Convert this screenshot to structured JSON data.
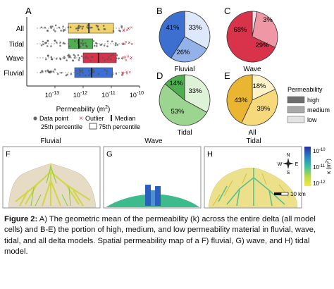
{
  "panel_a": {
    "letter": "A",
    "xlabel_prefix": "Permeability (m",
    "xlabel_exp": "2",
    "xlabel_suffix": ")",
    "ticks": [
      {
        "base": "10",
        "exp": "-13"
      },
      {
        "base": "10",
        "exp": "-12"
      },
      {
        "base": "10",
        "exp": "-11"
      },
      {
        "base": "10",
        "exp": "-10"
      }
    ],
    "legend": {
      "data_point": "Data point",
      "outlier": "Outlier",
      "median": "Median",
      "p25": "25th percentile",
      "p75": "75th percentile"
    }
  },
  "chart_data": [
    {
      "type": "box",
      "log_x": true,
      "xlim": [
        1e-14,
        1e-10
      ],
      "categories": [
        "All",
        "Tidal",
        "Wave",
        "Fluvial"
      ],
      "colors": [
        "#f0d36b",
        "#4faf50",
        "#d8334b",
        "#3a6fd8"
      ],
      "boxes": [
        {
          "category": "All",
          "q1": 3e-13,
          "median": 1.6e-12,
          "q3": 1.2e-11
        },
        {
          "category": "Tidal",
          "q1": 3e-13,
          "median": 7e-13,
          "q3": 2.2e-12
        },
        {
          "category": "Wave",
          "q1": 1e-12,
          "median": 3.5e-12,
          "q3": 1.5e-11
        },
        {
          "category": "Fluvial",
          "q1": 5e-13,
          "median": 2e-12,
          "q3": 1.1e-11
        }
      ]
    },
    {
      "type": "pie",
      "panel": "B",
      "title": "Fluvial",
      "slices": [
        {
          "label": "high",
          "value": 41
        },
        {
          "label": "medium",
          "value": 26
        },
        {
          "label": "low",
          "value": 33
        }
      ],
      "labels": [
        "41%",
        "26%",
        "33%"
      ],
      "colors": [
        "#3c6fd0",
        "#94b2ea",
        "#dde8fb"
      ]
    },
    {
      "type": "pie",
      "panel": "C",
      "title": "Wave",
      "slices": [
        {
          "label": "high",
          "value": 68
        },
        {
          "label": "medium",
          "value": 29
        },
        {
          "label": "low",
          "value": 3
        }
      ],
      "labels": [
        "68%",
        "29%",
        "3%"
      ],
      "colors": [
        "#d8334b",
        "#ef97a4",
        "#fadde2"
      ]
    },
    {
      "type": "pie",
      "panel": "D",
      "title": "Tidal",
      "slices": [
        {
          "label": "high",
          "value": 14
        },
        {
          "label": "medium",
          "value": 53
        },
        {
          "label": "low",
          "value": 33
        }
      ],
      "labels": [
        "14%",
        "53%",
        "33%"
      ],
      "colors": [
        "#4faf50",
        "#9bd58f",
        "#def2d8"
      ]
    },
    {
      "type": "pie",
      "panel": "E",
      "title": "All",
      "slices": [
        {
          "label": "high",
          "value": 43
        },
        {
          "label": "medium",
          "value": 39
        },
        {
          "label": "low",
          "value": 18
        }
      ],
      "labels": [
        "43%",
        "39%",
        "18%"
      ],
      "colors": [
        "#eab530",
        "#f6d97a",
        "#fdf2c8"
      ]
    }
  ],
  "perm_legend": {
    "title": "Permeability",
    "items": [
      {
        "label": "high",
        "color": "#6e6e6e"
      },
      {
        "label": "medium",
        "color": "#a9a9a9"
      },
      {
        "label": "low",
        "color": "#e2e2e2"
      }
    ]
  },
  "maps": [
    {
      "letter": "F",
      "title": "Fluvial"
    },
    {
      "letter": "G",
      "title": "Wave"
    },
    {
      "letter": "H",
      "title": "Tidal"
    }
  ],
  "compass": {
    "n": "N",
    "s": "S",
    "e": "E",
    "w": "W"
  },
  "scale_bar": {
    "label": "10 km"
  },
  "colorbar": {
    "label_prefix": "κ (m",
    "label_exp": "2",
    "label_suffix": ")",
    "ticks": [
      {
        "base": "10",
        "exp": "-10"
      },
      {
        "base": "10",
        "exp": "-11"
      },
      {
        "base": "10",
        "exp": "-12"
      }
    ]
  },
  "caption": {
    "label": "Figure 2:",
    "text": " A) The geometric mean of the permeability (k) across the entire delta (all model cells) and B-E) the portion of high, medium, and low permeability material in fluvial, wave, tidal, and all delta models. Spatial permeability map of a F) fluvial, G) wave, and H) tidal model."
  }
}
